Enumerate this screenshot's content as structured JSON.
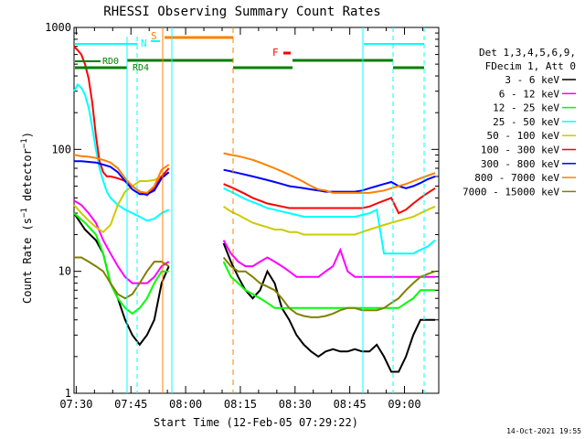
{
  "chart_data": {
    "type": "line",
    "title": "RHESSI Observing Summary Count Rates",
    "xlabel": "Start Time (12-Feb-05 07:29:22)",
    "ylabel": "Count Rate (s⁻¹ detector⁻¹)",
    "ylim": [
      1,
      1000
    ],
    "yscale": "log",
    "xlim_minutes": [
      0,
      100
    ],
    "x_tick_labels": [
      {
        "minute": 0.6,
        "label": "07:30"
      },
      {
        "minute": 15.6,
        "label": "07:45"
      },
      {
        "minute": 30.6,
        "label": "08:00"
      },
      {
        "minute": 45.6,
        "label": "08:15"
      },
      {
        "minute": 60.6,
        "label": "08:30"
      },
      {
        "minute": 75.6,
        "label": "08:45"
      },
      {
        "minute": 90.6,
        "label": "09:00"
      }
    ],
    "y_tick_labels": [
      {
        "value": 1,
        "label": "1"
      },
      {
        "value": 10,
        "label": "10"
      },
      {
        "value": 100,
        "label": "100"
      },
      {
        "value": 1000,
        "label": "1000"
      }
    ],
    "legend_header": [
      "Det 1,3,4,5,6,9,",
      "FDecim 1, Att 0"
    ],
    "series": [
      {
        "name": "3 - 6 keV",
        "color": "#000000",
        "t": [
          0,
          3,
          6,
          8,
          10,
          12,
          14,
          16,
          18,
          20,
          22,
          24,
          26,
          41,
          43,
          45,
          47,
          49,
          51,
          53,
          55,
          57,
          59,
          61,
          63,
          65,
          67,
          69,
          71,
          73,
          75,
          77,
          79,
          81,
          83,
          85,
          87,
          89,
          91,
          93,
          95,
          97,
          99
        ],
        "v": [
          30,
          22,
          18,
          14,
          8,
          6,
          4,
          3,
          2.5,
          3,
          4,
          8,
          11,
          17,
          12,
          9,
          7,
          6,
          7,
          10,
          8,
          5,
          4,
          3,
          2.5,
          2.2,
          2,
          2.2,
          2.3,
          2.2,
          2.2,
          2.3,
          2.2,
          2.2,
          2.5,
          2,
          1.5,
          1.5,
          2,
          3,
          4,
          4,
          4
        ]
      },
      {
        "name": "6 - 12 keV",
        "color": "#ff00ff",
        "t": [
          0,
          2,
          4,
          6,
          8,
          10,
          12,
          14,
          16,
          18,
          20,
          22,
          24,
          26,
          41,
          43,
          45,
          47,
          49,
          51,
          53,
          55,
          57,
          59,
          61,
          63,
          65,
          67,
          69,
          71,
          73,
          75,
          77,
          79,
          81,
          83,
          85,
          87,
          89,
          91,
          93,
          95,
          97,
          99
        ],
        "v": [
          38,
          35,
          30,
          25,
          18,
          14,
          11,
          9,
          8,
          8,
          8,
          9,
          11,
          12,
          18,
          14,
          12,
          11,
          11,
          12,
          13,
          12,
          11,
          10,
          9,
          9,
          9,
          9,
          10,
          11,
          15,
          10,
          9,
          9,
          9,
          9,
          9,
          9,
          9,
          9,
          9,
          9,
          9,
          9
        ]
      },
      {
        "name": "12 - 25 keV",
        "color": "#00ff00",
        "t": [
          0,
          3,
          6,
          8,
          10,
          12,
          14,
          16,
          18,
          20,
          22,
          24,
          26,
          41,
          43,
          45,
          47,
          49,
          51,
          53,
          55,
          57,
          59,
          61,
          63,
          65,
          67,
          69,
          71,
          73,
          75,
          77,
          79,
          81,
          83,
          85,
          87,
          89,
          91,
          93,
          95,
          97,
          99
        ],
        "v": [
          30,
          25,
          20,
          14,
          8,
          6,
          5,
          4.5,
          5,
          6,
          8,
          10,
          10,
          12,
          9,
          8,
          7,
          6.5,
          6,
          5.5,
          5,
          5,
          5,
          5,
          5,
          5,
          5,
          5,
          5,
          5,
          5,
          5,
          5,
          5,
          5,
          5,
          5,
          5,
          5.5,
          6,
          7,
          7,
          7
        ]
      },
      {
        "name": "25 - 50 keV",
        "color": "#00ffff",
        "t": [
          0,
          1,
          2,
          3,
          4,
          5,
          6,
          7,
          8,
          9,
          10,
          12,
          14,
          16,
          18,
          20,
          22,
          24,
          26,
          41,
          43,
          45,
          47,
          49,
          51,
          53,
          55,
          57,
          59,
          61,
          63,
          65,
          67,
          69,
          71,
          73,
          75,
          77,
          79,
          81,
          83,
          85,
          87,
          89,
          91,
          93,
          95,
          97,
          99
        ],
        "v": [
          300,
          340,
          320,
          280,
          220,
          150,
          100,
          70,
          55,
          45,
          40,
          35,
          32,
          30,
          28,
          26,
          27,
          30,
          32,
          48,
          45,
          42,
          39,
          37,
          35,
          33,
          32,
          31,
          30,
          29,
          28,
          28,
          28,
          28,
          28,
          28,
          28,
          28,
          29,
          30,
          32,
          14,
          14,
          14,
          14,
          14,
          15,
          16,
          18
        ]
      },
      {
        "name": "50 - 100 keV",
        "color": "#cccc00",
        "t": [
          0,
          2,
          4,
          6,
          8,
          10,
          12,
          14,
          16,
          18,
          20,
          22,
          24,
          26,
          41,
          43,
          45,
          47,
          49,
          51,
          53,
          55,
          57,
          59,
          61,
          63,
          65,
          67,
          69,
          71,
          73,
          75,
          77,
          79,
          81,
          83,
          85,
          87,
          89,
          91,
          93,
          95,
          97,
          99
        ],
        "v": [
          35,
          30,
          26,
          23,
          21,
          24,
          35,
          45,
          50,
          55,
          55,
          56,
          60,
          65,
          34,
          31,
          29,
          27,
          25,
          24,
          23,
          22,
          22,
          21,
          21,
          20,
          20,
          20,
          20,
          20,
          20,
          20,
          20,
          21,
          22,
          23,
          24,
          25,
          26,
          27,
          28,
          30,
          32,
          34
        ]
      },
      {
        "name": "100 - 300 keV",
        "color": "#ff0000",
        "t": [
          0,
          1,
          2,
          3,
          4,
          5,
          6,
          7,
          8,
          9,
          10,
          12,
          14,
          16,
          18,
          20,
          22,
          24,
          26,
          41,
          43,
          45,
          47,
          49,
          51,
          53,
          55,
          57,
          59,
          61,
          63,
          65,
          67,
          69,
          71,
          73,
          75,
          77,
          79,
          81,
          83,
          85,
          87,
          89,
          91,
          93,
          95,
          97,
          99
        ],
        "v": [
          700,
          650,
          600,
          500,
          380,
          240,
          130,
          80,
          65,
          60,
          60,
          58,
          55,
          50,
          45,
          42,
          48,
          60,
          70,
          52,
          49,
          46,
          43,
          40,
          38,
          36,
          35,
          34,
          33,
          33,
          33,
          33,
          33,
          33,
          33,
          33,
          33,
          33,
          33,
          34,
          36,
          38,
          40,
          30,
          32,
          36,
          40,
          44,
          48
        ]
      },
      {
        "name": "300 - 800 keV",
        "color": "#0000ff",
        "t": [
          0,
          2,
          4,
          6,
          8,
          10,
          12,
          14,
          16,
          18,
          20,
          22,
          24,
          26,
          41,
          43,
          45,
          47,
          49,
          51,
          53,
          55,
          57,
          59,
          61,
          63,
          65,
          67,
          69,
          71,
          73,
          75,
          77,
          79,
          81,
          83,
          85,
          87,
          89,
          91,
          93,
          95,
          97,
          99
        ],
        "v": [
          80,
          80,
          79,
          78,
          75,
          72,
          65,
          55,
          47,
          43,
          43,
          46,
          58,
          65,
          68,
          66,
          64,
          62,
          60,
          58,
          56,
          54,
          52,
          50,
          49,
          48,
          47,
          46,
          45,
          45,
          45,
          45,
          45,
          46,
          48,
          50,
          52,
          54,
          50,
          48,
          50,
          53,
          57,
          60
        ]
      },
      {
        "name": "800 - 7000 keV",
        "color": "#ff8000",
        "t": [
          0,
          2,
          4,
          6,
          8,
          10,
          12,
          14,
          16,
          18,
          20,
          22,
          24,
          26,
          41,
          43,
          45,
          47,
          49,
          51,
          53,
          55,
          57,
          59,
          61,
          63,
          65,
          67,
          69,
          71,
          73,
          75,
          77,
          79,
          81,
          83,
          85,
          87,
          89,
          91,
          93,
          95,
          97,
          99
        ],
        "v": [
          90,
          88,
          87,
          85,
          82,
          78,
          70,
          58,
          50,
          45,
          44,
          50,
          68,
          75,
          93,
          90,
          88,
          85,
          82,
          78,
          74,
          70,
          66,
          62,
          58,
          54,
          50,
          47,
          46,
          44,
          44,
          44,
          44,
          44,
          44,
          45,
          46,
          48,
          50,
          52,
          55,
          58,
          61,
          64
        ]
      },
      {
        "name": "7000 - 15000 keV",
        "color": "#808000",
        "t": [
          0,
          2,
          4,
          6,
          8,
          10,
          12,
          14,
          16,
          18,
          20,
          22,
          24,
          26,
          41,
          43,
          45,
          47,
          49,
          51,
          53,
          55,
          57,
          59,
          61,
          63,
          65,
          67,
          69,
          71,
          73,
          75,
          77,
          79,
          81,
          83,
          85,
          87,
          89,
          91,
          93,
          95,
          97,
          99
        ],
        "v": [
          13,
          13,
          12,
          11,
          10,
          8,
          6.5,
          6,
          6.5,
          8,
          10,
          12,
          12,
          11,
          13,
          11,
          10,
          10,
          9,
          8,
          7.5,
          7,
          6,
          5,
          4.5,
          4.3,
          4.2,
          4.2,
          4.3,
          4.5,
          4.8,
          5,
          5,
          4.8,
          4.8,
          4.8,
          5,
          5.5,
          6,
          7,
          8,
          9,
          9.5,
          10
        ]
      }
    ],
    "annotations": {
      "state_labels": [
        "N",
        "S",
        "F",
        "RD0",
        "RD4"
      ],
      "timestamp": "14-Oct-2021 19:55"
    }
  }
}
